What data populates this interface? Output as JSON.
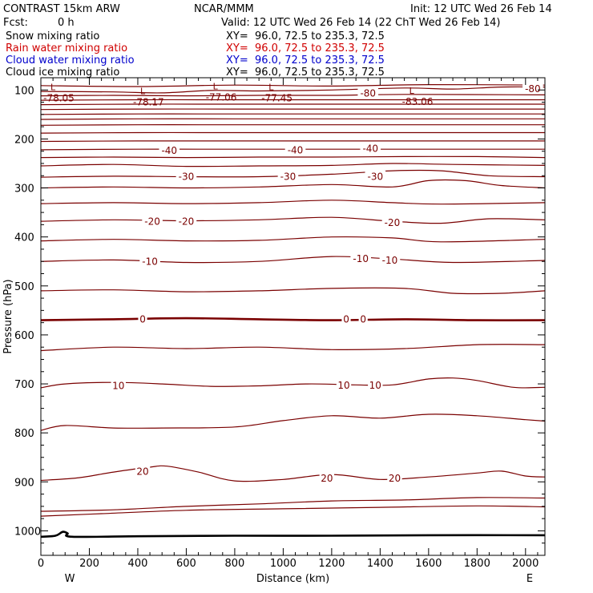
{
  "header": {
    "model": "CONTRAST 15km ARW",
    "center": "NCAR/MMM",
    "init": "Init: 12 UTC Wed 26 Feb 14",
    "fcst_label": "Fcst:",
    "fcst_value": "0 h",
    "valid": "Valid: 12 UTC Wed 26 Feb 14 (22 ChT Wed 26 Feb 14)"
  },
  "legend": [
    {
      "name": "Snow mixing ratio",
      "xy": "XY=  96.0, 72.5 to 235.3, 72.5",
      "color": "#000000"
    },
    {
      "name": "Rain water mixing ratio",
      "xy": "XY=  96.0, 72.5 to 235.3, 72.5",
      "color": "#d00000"
    },
    {
      "name": "Cloud water mixing ratio",
      "xy": "XY=  96.0, 72.5 to 235.3, 72.5",
      "color": "#0000cc"
    },
    {
      "name": "Cloud ice mixing ratio",
      "xy": "XY=  96.0, 72.5 to 235.3, 72.5",
      "color": "#000000"
    }
  ],
  "chart_data": {
    "type": "line",
    "xlabel": "Distance (km)",
    "ylabel": "Pressure (hPa)",
    "xlim": [
      0,
      2080
    ],
    "ylim": [
      1050,
      75
    ],
    "x_ticks": [
      "0",
      "200",
      "400",
      "600",
      "800",
      "1000",
      "1200",
      "1400",
      "1600",
      "1800",
      "2000"
    ],
    "y_ticks": [
      "100",
      "200",
      "300",
      "400",
      "500",
      "600",
      "700",
      "800",
      "900",
      "1000"
    ],
    "west_label": "W",
    "east_label": "E",
    "contour_color": "#7a0000",
    "terrain_color": "#000000",
    "contours": [
      {
        "points": [
          [
            0,
            960
          ],
          [
            300,
            957
          ],
          [
            600,
            950
          ],
          [
            900,
            945
          ],
          [
            1200,
            939
          ],
          [
            1500,
            937
          ],
          [
            1800,
            932
          ],
          [
            2080,
            933
          ]
        ]
      },
      {
        "points": [
          [
            0,
            970
          ],
          [
            250,
            965
          ],
          [
            600,
            958
          ],
          [
            1000,
            955
          ],
          [
            1400,
            952
          ],
          [
            1800,
            949
          ],
          [
            2080,
            951
          ]
        ]
      },
      {
        "points": [
          [
            0,
            897
          ],
          [
            150,
            892
          ],
          [
            300,
            880
          ],
          [
            450,
            870
          ],
          [
            520,
            868
          ],
          [
            650,
            880
          ],
          [
            800,
            898
          ],
          [
            1000,
            895
          ],
          [
            1200,
            885
          ],
          [
            1400,
            895
          ],
          [
            1600,
            890
          ],
          [
            1800,
            882
          ],
          [
            1900,
            878
          ],
          [
            2000,
            888
          ],
          [
            2080,
            890
          ]
        ]
      },
      {
        "points": [
          [
            0,
            795
          ],
          [
            100,
            785
          ],
          [
            300,
            790
          ],
          [
            500,
            790
          ],
          [
            800,
            788
          ],
          [
            1000,
            775
          ],
          [
            1200,
            765
          ],
          [
            1400,
            770
          ],
          [
            1600,
            762
          ],
          [
            1800,
            765
          ],
          [
            2000,
            773
          ],
          [
            2080,
            776
          ]
        ]
      },
      {
        "points": [
          [
            0,
            708
          ],
          [
            100,
            700
          ],
          [
            300,
            697
          ],
          [
            500,
            700
          ],
          [
            700,
            705
          ],
          [
            900,
            704
          ],
          [
            1100,
            700
          ],
          [
            1300,
            702
          ],
          [
            1450,
            702
          ],
          [
            1600,
            690
          ],
          [
            1700,
            688
          ],
          [
            1800,
            693
          ],
          [
            1950,
            707
          ],
          [
            2080,
            707
          ]
        ]
      },
      {
        "points": [
          [
            0,
            632
          ],
          [
            300,
            625
          ],
          [
            600,
            628
          ],
          [
            900,
            625
          ],
          [
            1200,
            630
          ],
          [
            1500,
            628
          ],
          [
            1800,
            620
          ],
          [
            2080,
            620
          ]
        ]
      },
      {
        "points": [
          [
            0,
            570
          ],
          [
            300,
            568
          ],
          [
            600,
            566
          ],
          [
            900,
            568
          ],
          [
            1200,
            570
          ],
          [
            1500,
            568
          ],
          [
            1800,
            570
          ],
          [
            2080,
            570
          ]
        ],
        "thick": true
      },
      {
        "points": [
          [
            0,
            510
          ],
          [
            300,
            508
          ],
          [
            600,
            512
          ],
          [
            900,
            510
          ],
          [
            1200,
            505
          ],
          [
            1500,
            505
          ],
          [
            1700,
            515
          ],
          [
            1900,
            515
          ],
          [
            2080,
            510
          ]
        ]
      },
      {
        "points": [
          [
            0,
            450
          ],
          [
            300,
            447
          ],
          [
            600,
            452
          ],
          [
            900,
            450
          ],
          [
            1200,
            440
          ],
          [
            1450,
            445
          ],
          [
            1700,
            452
          ],
          [
            2080,
            448
          ]
        ]
      },
      {
        "points": [
          [
            0,
            408
          ],
          [
            300,
            405
          ],
          [
            600,
            408
          ],
          [
            900,
            407
          ],
          [
            1200,
            400
          ],
          [
            1450,
            402
          ],
          [
            1650,
            410
          ],
          [
            2080,
            405
          ]
        ]
      },
      {
        "points": [
          [
            0,
            368
          ],
          [
            300,
            365
          ],
          [
            600,
            367
          ],
          [
            900,
            365
          ],
          [
            1200,
            360
          ],
          [
            1450,
            368
          ],
          [
            1650,
            372
          ],
          [
            1850,
            363
          ],
          [
            2080,
            365
          ]
        ]
      },
      {
        "points": [
          [
            0,
            332
          ],
          [
            300,
            330
          ],
          [
            600,
            332
          ],
          [
            900,
            330
          ],
          [
            1200,
            325
          ],
          [
            1450,
            330
          ],
          [
            1650,
            333
          ],
          [
            2080,
            330
          ]
        ]
      },
      {
        "points": [
          [
            0,
            300
          ],
          [
            300,
            298
          ],
          [
            600,
            300
          ],
          [
            900,
            298
          ],
          [
            1200,
            293
          ],
          [
            1450,
            298
          ],
          [
            1600,
            285
          ],
          [
            1750,
            285
          ],
          [
            1900,
            295
          ],
          [
            2080,
            300
          ]
        ]
      },
      {
        "points": [
          [
            0,
            278
          ],
          [
            300,
            276
          ],
          [
            600,
            277
          ],
          [
            900,
            277
          ],
          [
            1200,
            272
          ],
          [
            1450,
            265
          ],
          [
            1650,
            265
          ],
          [
            1850,
            275
          ],
          [
            2080,
            277
          ]
        ]
      },
      {
        "points": [
          [
            0,
            255
          ],
          [
            300,
            252
          ],
          [
            600,
            256
          ],
          [
            900,
            255
          ],
          [
            1200,
            254
          ],
          [
            1450,
            250
          ],
          [
            1700,
            252
          ],
          [
            2080,
            254
          ]
        ]
      },
      {
        "points": [
          [
            0,
            238
          ],
          [
            300,
            237
          ],
          [
            600,
            238
          ],
          [
            900,
            237
          ],
          [
            1200,
            237
          ],
          [
            1500,
            236
          ],
          [
            1800,
            236
          ],
          [
            2080,
            238
          ]
        ]
      },
      {
        "points": [
          [
            0,
            222
          ],
          [
            400,
            221
          ],
          [
            800,
            221
          ],
          [
            1200,
            221
          ],
          [
            1600,
            221
          ],
          [
            2080,
            221
          ]
        ]
      },
      {
        "points": [
          [
            0,
            205
          ],
          [
            400,
            204
          ],
          [
            800,
            204
          ],
          [
            1200,
            204
          ],
          [
            1600,
            204
          ],
          [
            2080,
            204
          ]
        ]
      },
      {
        "points": [
          [
            0,
            188
          ],
          [
            400,
            187
          ],
          [
            800,
            187
          ],
          [
            1200,
            187
          ],
          [
            1600,
            187
          ],
          [
            2080,
            187
          ]
        ]
      },
      {
        "points": [
          [
            0,
            172
          ],
          [
            400,
            171
          ],
          [
            800,
            171
          ],
          [
            1200,
            171
          ],
          [
            1600,
            171
          ],
          [
            2080,
            171
          ]
        ]
      },
      {
        "points": [
          [
            0,
            160
          ],
          [
            400,
            159
          ],
          [
            800,
            159
          ],
          [
            1200,
            159
          ],
          [
            1600,
            159
          ],
          [
            2080,
            159
          ]
        ]
      },
      {
        "points": [
          [
            0,
            150
          ],
          [
            400,
            149
          ],
          [
            800,
            149
          ],
          [
            1200,
            149
          ],
          [
            1600,
            149
          ],
          [
            2080,
            149
          ]
        ]
      },
      {
        "points": [
          [
            0,
            140
          ],
          [
            400,
            139
          ],
          [
            800,
            139
          ],
          [
            1200,
            139
          ],
          [
            1600,
            139
          ],
          [
            2080,
            139
          ]
        ]
      },
      {
        "points": [
          [
            0,
            130
          ],
          [
            400,
            129
          ],
          [
            800,
            129
          ],
          [
            1200,
            129
          ],
          [
            1600,
            129
          ],
          [
            2080,
            129
          ]
        ]
      },
      {
        "points": [
          [
            0,
            121
          ],
          [
            400,
            120
          ],
          [
            800,
            120
          ],
          [
            1200,
            120
          ],
          [
            1600,
            120
          ],
          [
            2080,
            120
          ]
        ]
      },
      {
        "points": [
          [
            0,
            112
          ],
          [
            300,
            111
          ],
          [
            600,
            112
          ],
          [
            900,
            111
          ],
          [
            1200,
            111
          ],
          [
            1500,
            109
          ],
          [
            2080,
            110
          ]
        ]
      },
      {
        "points": [
          [
            0,
            103
          ],
          [
            300,
            104
          ],
          [
            500,
            106
          ],
          [
            700,
            101
          ],
          [
            900,
            102
          ],
          [
            1200,
            100
          ],
          [
            1500,
            96
          ],
          [
            1700,
            98
          ],
          [
            1900,
            94
          ],
          [
            2080,
            94
          ]
        ]
      },
      {
        "points": [
          [
            0,
            91
          ],
          [
            400,
            93
          ],
          [
            800,
            90
          ],
          [
            1200,
            92
          ],
          [
            1600,
            89
          ],
          [
            2080,
            90
          ]
        ]
      }
    ],
    "terrain": [
      [
        0,
        1012
      ],
      [
        60,
        1010
      ],
      [
        90,
        1002
      ],
      [
        110,
        1005
      ],
      [
        130,
        1012
      ],
      [
        400,
        1011
      ],
      [
        800,
        1010
      ],
      [
        1200,
        1010
      ],
      [
        1600,
        1009
      ],
      [
        2080,
        1009
      ]
    ],
    "contour_labels": [
      {
        "text": "20",
        "x": 420,
        "y": 878
      },
      {
        "text": "20",
        "x": 1180,
        "y": 892
      },
      {
        "text": "20",
        "x": 1460,
        "y": 892
      },
      {
        "text": "10",
        "x": 320,
        "y": 703
      },
      {
        "text": "10",
        "x": 1250,
        "y": 702
      },
      {
        "text": "10",
        "x": 1380,
        "y": 702
      },
      {
        "text": "0",
        "x": 420,
        "y": 567
      },
      {
        "text": "0",
        "x": 1260,
        "y": 567
      },
      {
        "text": "0",
        "x": 1330,
        "y": 567
      },
      {
        "text": "-10",
        "x": 450,
        "y": 450
      },
      {
        "text": "-10",
        "x": 1320,
        "y": 444
      },
      {
        "text": "-10",
        "x": 1440,
        "y": 447
      },
      {
        "text": "-20",
        "x": 460,
        "y": 368
      },
      {
        "text": "-20",
        "x": 600,
        "y": 368
      },
      {
        "text": "-20",
        "x": 1450,
        "y": 370
      },
      {
        "text": "-30",
        "x": 600,
        "y": 276
      },
      {
        "text": "-30",
        "x": 1020,
        "y": 276
      },
      {
        "text": "-30",
        "x": 1380,
        "y": 276
      },
      {
        "text": "-40",
        "x": 530,
        "y": 223
      },
      {
        "text": "-40",
        "x": 1050,
        "y": 222
      },
      {
        "text": "-40",
        "x": 1360,
        "y": 219
      },
      {
        "text": "-80",
        "x": 1350,
        "y": 106
      },
      {
        "text": "-80",
        "x": 2030,
        "y": 97
      }
    ],
    "extrema": [
      {
        "mark": "L",
        "value": "-78.05",
        "x": 50,
        "y": 104
      },
      {
        "mark": "L",
        "value": "-78.17",
        "x": 420,
        "y": 112
      },
      {
        "mark": "L",
        "value": "-77.06",
        "x": 720,
        "y": 102
      },
      {
        "mark": "L",
        "value": "-77.45",
        "x": 950,
        "y": 104
      },
      {
        "mark": "L",
        "value": "-83.06",
        "x": 1530,
        "y": 111
      }
    ]
  }
}
